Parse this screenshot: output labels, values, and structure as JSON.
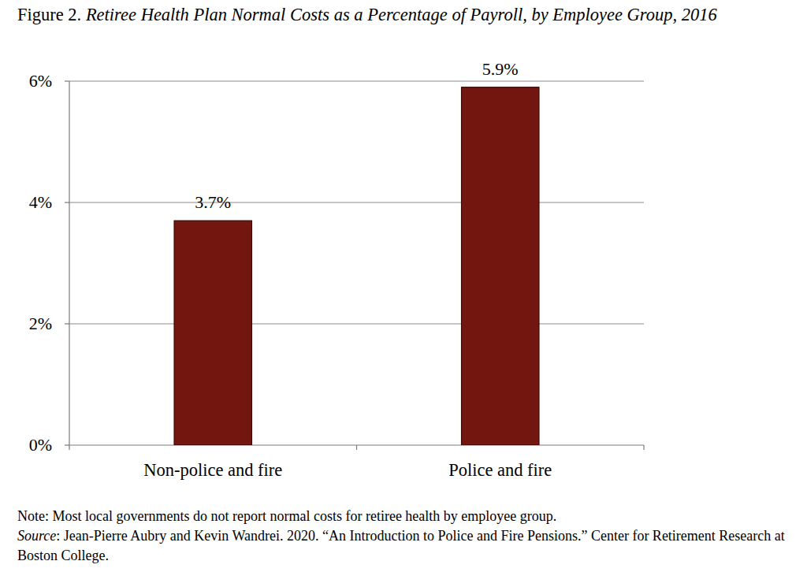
{
  "chart_data": {
    "type": "bar",
    "title": "Figure 2. Retiree Health Plan Normal Costs as a Percentage of Payroll, by Employee Group, 2016",
    "categories": [
      "Non-police and fire",
      "Police and fire"
    ],
    "values": [
      3.7,
      5.9
    ],
    "value_labels": [
      "3.7%",
      "5.9%"
    ],
    "color": "#72160f",
    "ylim": [
      0,
      6
    ],
    "yticks": [
      {
        "value": 0,
        "label": "0%"
      },
      {
        "value": 2,
        "label": "2%"
      },
      {
        "value": 4,
        "label": "4%"
      },
      {
        "value": 6,
        "label": "6%"
      }
    ],
    "grid": true,
    "data_labels": true,
    "annotations": [
      "Note: Most local governments do not report normal costs for retiree health by employee group.",
      "Source: Jean-Pierre Aubry and Kevin Wandrei. 2020. “An Introduction to Police and Fire Pensions.” Center for Retirement Research at Boston College."
    ]
  }
}
